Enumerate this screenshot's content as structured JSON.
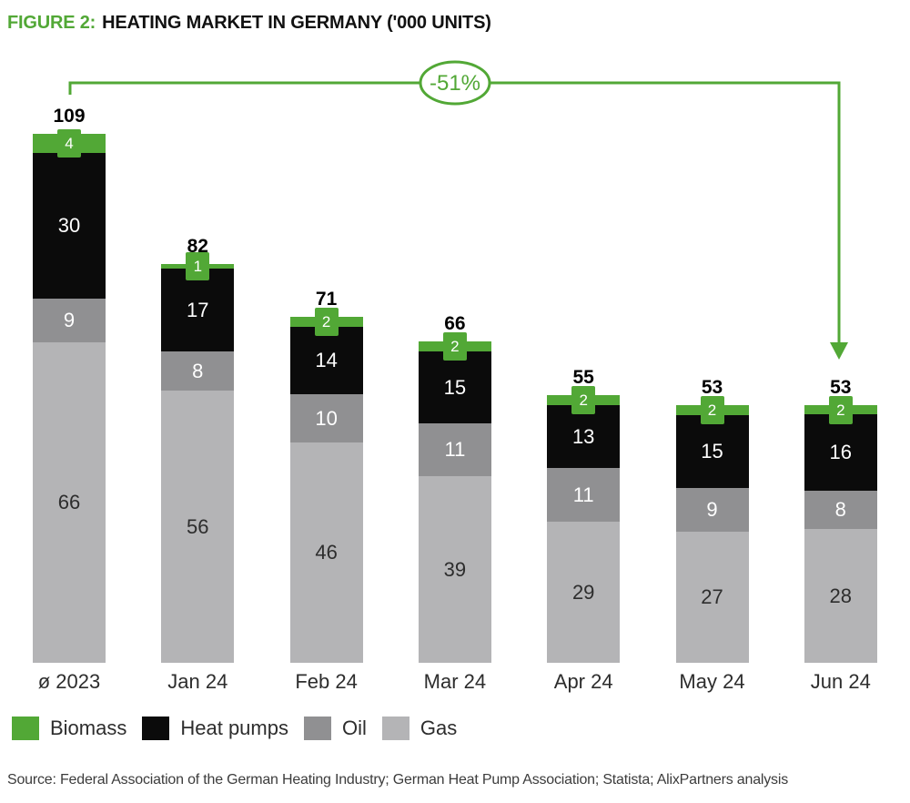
{
  "title": {
    "prefix": "FIGURE 2:",
    "text": "HEATING MARKET IN GERMANY ('000 UNITS)"
  },
  "colors": {
    "accent_green": "#52a836",
    "heat_pumps_black": "#0b0b0b",
    "oil_gray": "#909092",
    "gas_gray": "#b4b4b6",
    "dark_text": "#2d2d2d"
  },
  "chart_data": {
    "type": "bar",
    "stacked": true,
    "title": "Heating market in Germany ('000 units)",
    "categories": [
      "ø 2023",
      "Jan 24",
      "Feb 24",
      "Mar 24",
      "Apr 24",
      "May 24",
      "Jun 24"
    ],
    "totals": [
      109,
      82,
      71,
      66,
      55,
      53,
      53
    ],
    "series": [
      {
        "name": "Gas",
        "color": "#b4b4b6",
        "text_color": "#2d2d2d",
        "values": [
          66,
          56,
          46,
          39,
          29,
          27,
          28
        ]
      },
      {
        "name": "Oil",
        "color": "#909092",
        "text_color": "#ffffff",
        "values": [
          9,
          8,
          10,
          11,
          11,
          9,
          8
        ]
      },
      {
        "name": "Heat pumps",
        "color": "#0b0b0b",
        "text_color": "#ffffff",
        "values": [
          30,
          17,
          14,
          15,
          13,
          15,
          16
        ]
      },
      {
        "name": "Biomass",
        "color": "#52a836",
        "text_color": "#ffffff",
        "badge": true,
        "values": [
          4,
          1,
          2,
          2,
          2,
          2,
          2
        ]
      }
    ],
    "annotation": {
      "label": "-51%",
      "from_category": "ø 2023",
      "to_category": "Jun 24"
    },
    "legend_position": "bottom",
    "grid": false,
    "ylim": [
      0,
      120
    ]
  },
  "legend": {
    "items": [
      {
        "label": "Biomass",
        "color": "#52a836"
      },
      {
        "label": "Heat pumps",
        "color": "#0b0b0b"
      },
      {
        "label": "Oil",
        "color": "#909092"
      },
      {
        "label": "Gas",
        "color": "#b4b4b6"
      }
    ]
  },
  "source": "Source: Federal Association of the German Heating Industry; German Heat Pump Association; Statista; AlixPartners analysis"
}
